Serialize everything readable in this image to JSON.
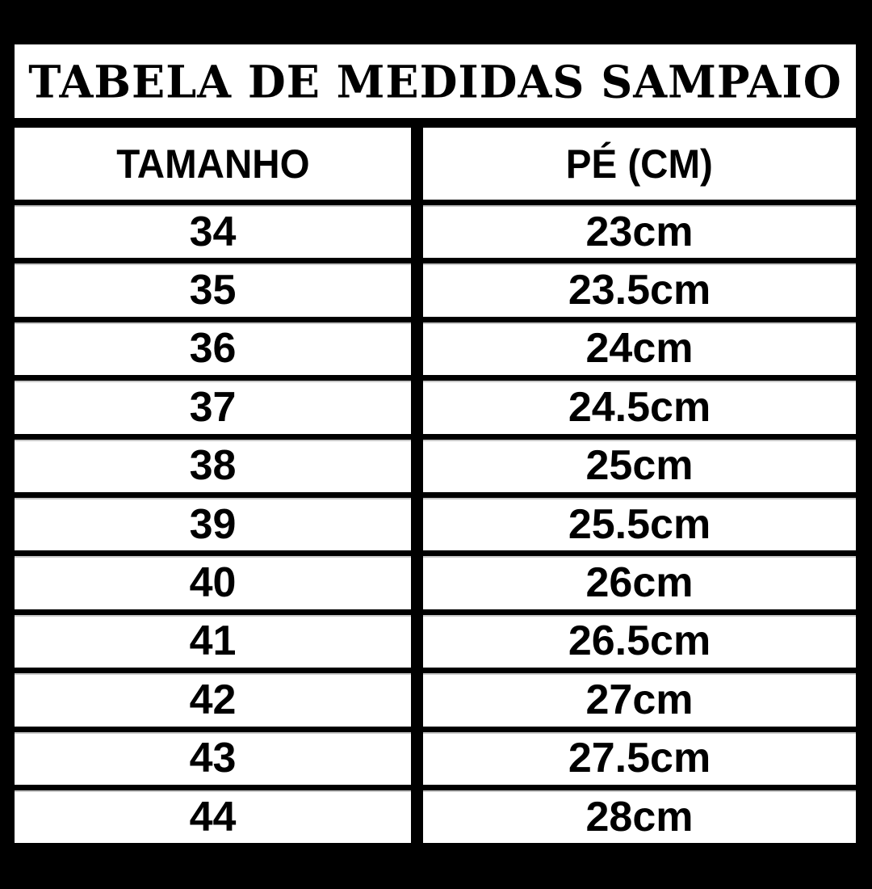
{
  "chart_data": {
    "type": "table",
    "title": "TABELA DE MEDIDAS SAMPAIO",
    "columns": [
      "TAMANHO",
      "PÉ (CM)"
    ],
    "rows": [
      {
        "size": "34",
        "foot_cm": "23cm"
      },
      {
        "size": "35",
        "foot_cm": "23.5cm"
      },
      {
        "size": "36",
        "foot_cm": "24cm"
      },
      {
        "size": "37",
        "foot_cm": "24.5cm"
      },
      {
        "size": "38",
        "foot_cm": "25cm"
      },
      {
        "size": "39",
        "foot_cm": "25.5cm"
      },
      {
        "size": "40",
        "foot_cm": "26cm"
      },
      {
        "size": "41",
        "foot_cm": "26.5cm"
      },
      {
        "size": "42",
        "foot_cm": "27cm"
      },
      {
        "size": "43",
        "foot_cm": "27.5cm"
      },
      {
        "size": "44",
        "foot_cm": "28cm"
      }
    ],
    "layout": {
      "grid": "on",
      "header_row": true,
      "column_count": 2
    }
  },
  "colors": {
    "background": "#000000",
    "cell_background": "#ffffff",
    "text": "#000000"
  }
}
